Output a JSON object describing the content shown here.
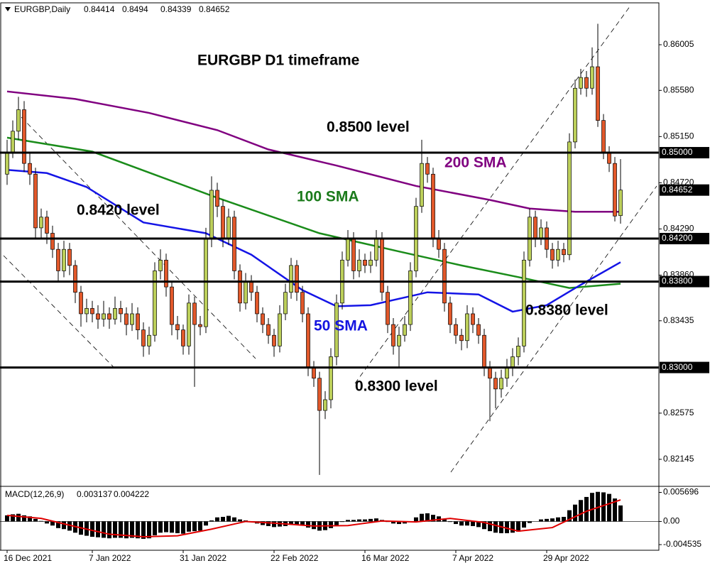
{
  "chart_data": {
    "type": "candlestick",
    "symbol": "EURGBP,Daily",
    "macd_label": "MACD(12,26,9)",
    "annotations": [
      {
        "text": "EURGBP D1 timeframe",
        "color": "#000000"
      },
      {
        "text": "0.8500 level",
        "color": "#000000"
      },
      {
        "text": "200 SMA",
        "color": "#800080"
      },
      {
        "text": "100 SMA",
        "color": "#1a7a1a"
      },
      {
        "text": "0.8420 level",
        "color": "#000000"
      },
      {
        "text": "50 SMA",
        "color": "#1414e0"
      },
      {
        "text": "0.8380 level",
        "color": "#000000"
      },
      {
        "text": "0.8300 level",
        "color": "#000000"
      }
    ],
    "bull_color": "#bccf5a",
    "bear_color": "#e2582a",
    "categories": [
      "16 Dec 2021",
      null,
      null,
      null,
      null,
      null,
      null,
      null,
      null,
      null,
      null,
      null,
      null,
      null,
      null,
      "7 Jan 2022",
      null,
      null,
      null,
      null,
      null,
      null,
      null,
      null,
      null,
      null,
      null,
      null,
      null,
      null,
      null,
      "31 Jan 2022",
      null,
      null,
      null,
      null,
      null,
      null,
      null,
      null,
      null,
      null,
      null,
      null,
      null,
      null,
      null,
      "22 Feb 2022",
      null,
      null,
      null,
      null,
      null,
      null,
      null,
      null,
      null,
      null,
      null,
      null,
      null,
      null,
      null,
      "16 Mar 2022",
      null,
      null,
      null,
      null,
      null,
      null,
      null,
      null,
      null,
      null,
      null,
      null,
      null,
      null,
      null,
      "7 Apr 2022",
      null,
      null,
      null,
      null,
      null,
      null,
      null,
      null,
      null,
      null,
      null,
      null,
      null,
      null,
      null,
      "29 Apr 2022",
      null,
      null,
      null,
      null,
      null,
      null,
      null,
      null,
      null,
      null,
      null,
      null,
      null
    ],
    "candles": [
      [
        0.848,
        0.8512,
        0.847,
        0.85
      ],
      [
        0.85,
        0.853,
        0.8495,
        0.852
      ],
      [
        0.852,
        0.8552,
        0.8512,
        0.854
      ],
      [
        0.854,
        0.8548,
        0.8482,
        0.849
      ],
      [
        0.849,
        0.85,
        0.847,
        0.848
      ],
      [
        0.848,
        0.8486,
        0.842,
        0.843
      ],
      [
        0.843,
        0.8448,
        0.842,
        0.844
      ],
      [
        0.844,
        0.8446,
        0.8415,
        0.8425
      ],
      [
        0.8425,
        0.8432,
        0.8402,
        0.841
      ],
      [
        0.841,
        0.8416,
        0.838,
        0.839
      ],
      [
        0.839,
        0.8418,
        0.8384,
        0.841
      ],
      [
        0.841,
        0.8416,
        0.8386,
        0.8395
      ],
      [
        0.8395,
        0.84,
        0.836,
        0.837
      ],
      [
        0.837,
        0.8376,
        0.8338,
        0.835
      ],
      [
        0.835,
        0.8364,
        0.8342,
        0.8355
      ],
      [
        0.8355,
        0.8362,
        0.8342,
        0.835
      ],
      [
        0.835,
        0.8358,
        0.8336,
        0.8345
      ],
      [
        0.8345,
        0.8362,
        0.8338,
        0.835
      ],
      [
        0.835,
        0.8356,
        0.8336,
        0.8345
      ],
      [
        0.8345,
        0.8366,
        0.834,
        0.8355
      ],
      [
        0.8355,
        0.8362,
        0.8342,
        0.835
      ],
      [
        0.835,
        0.8356,
        0.833,
        0.834
      ],
      [
        0.834,
        0.836,
        0.8334,
        0.835
      ],
      [
        0.835,
        0.8356,
        0.8326,
        0.8335
      ],
      [
        0.8335,
        0.8342,
        0.831,
        0.832
      ],
      [
        0.832,
        0.8338,
        0.8312,
        0.833
      ],
      [
        0.833,
        0.8398,
        0.8324,
        0.839
      ],
      [
        0.839,
        0.841,
        0.8382,
        0.84
      ],
      [
        0.84,
        0.8406,
        0.8366,
        0.8375
      ],
      [
        0.8375,
        0.838,
        0.833,
        0.834
      ],
      [
        0.834,
        0.8348,
        0.8326,
        0.8335
      ],
      [
        0.8335,
        0.834,
        0.8312,
        0.832
      ],
      [
        0.832,
        0.8368,
        0.8312,
        0.836
      ],
      [
        0.836,
        0.8366,
        0.8282,
        0.834
      ],
      [
        0.834,
        0.8348,
        0.833,
        0.8338
      ],
      [
        0.8338,
        0.843,
        0.8332,
        0.842
      ],
      [
        0.842,
        0.8478,
        0.8412,
        0.8465
      ],
      [
        0.8465,
        0.8472,
        0.844,
        0.845
      ],
      [
        0.845,
        0.8456,
        0.8412,
        0.842
      ],
      [
        0.842,
        0.8448,
        0.8414,
        0.844
      ],
      [
        0.844,
        0.8446,
        0.8382,
        0.839
      ],
      [
        0.839,
        0.8396,
        0.8352,
        0.836
      ],
      [
        0.836,
        0.8388,
        0.8354,
        0.838
      ],
      [
        0.838,
        0.8386,
        0.8362,
        0.837
      ],
      [
        0.837,
        0.8376,
        0.8342,
        0.835
      ],
      [
        0.835,
        0.8356,
        0.8332,
        0.834
      ],
      [
        0.834,
        0.8346,
        0.8322,
        0.833
      ],
      [
        0.833,
        0.8336,
        0.831,
        0.832
      ],
      [
        0.832,
        0.8358,
        0.8314,
        0.835
      ],
      [
        0.835,
        0.8378,
        0.8344,
        0.837
      ],
      [
        0.837,
        0.8402,
        0.8364,
        0.8395
      ],
      [
        0.8395,
        0.84,
        0.8362,
        0.837
      ],
      [
        0.837,
        0.8376,
        0.8342,
        0.835
      ],
      [
        0.835,
        0.8356,
        0.8292,
        0.83
      ],
      [
        0.83,
        0.8306,
        0.8282,
        0.829
      ],
      [
        0.829,
        0.8296,
        0.82,
        0.826
      ],
      [
        0.826,
        0.8278,
        0.8252,
        0.827
      ],
      [
        0.827,
        0.8318,
        0.8262,
        0.831
      ],
      [
        0.831,
        0.8368,
        0.8302,
        0.836
      ],
      [
        0.836,
        0.8408,
        0.8354,
        0.84
      ],
      [
        0.84,
        0.8428,
        0.8394,
        0.842
      ],
      [
        0.842,
        0.8426,
        0.8382,
        0.839
      ],
      [
        0.839,
        0.841,
        0.8384,
        0.84
      ],
      [
        0.84,
        0.8406,
        0.8388,
        0.8395
      ],
      [
        0.8395,
        0.8408,
        0.8388,
        0.84
      ],
      [
        0.84,
        0.8428,
        0.8394,
        0.842
      ],
      [
        0.842,
        0.8426,
        0.8362,
        0.837
      ],
      [
        0.837,
        0.8376,
        0.8332,
        0.834
      ],
      [
        0.834,
        0.8346,
        0.8312,
        0.832
      ],
      [
        0.832,
        0.8338,
        0.83,
        0.833
      ],
      [
        0.833,
        0.8348,
        0.8324,
        0.834
      ],
      [
        0.834,
        0.8398,
        0.8334,
        0.839
      ],
      [
        0.839,
        0.8458,
        0.8384,
        0.845
      ],
      [
        0.845,
        0.8512,
        0.8444,
        0.849
      ],
      [
        0.849,
        0.8496,
        0.8472,
        0.848
      ],
      [
        0.848,
        0.8486,
        0.8412,
        0.842
      ],
      [
        0.842,
        0.8428,
        0.8402,
        0.841
      ],
      [
        0.841,
        0.8416,
        0.8352,
        0.836
      ],
      [
        0.836,
        0.8366,
        0.8332,
        0.834
      ],
      [
        0.834,
        0.8346,
        0.8322,
        0.833
      ],
      [
        0.833,
        0.8336,
        0.8316,
        0.8325
      ],
      [
        0.8325,
        0.8358,
        0.8318,
        0.835
      ],
      [
        0.835,
        0.8356,
        0.8332,
        0.834
      ],
      [
        0.834,
        0.8346,
        0.8322,
        0.833
      ],
      [
        0.833,
        0.8336,
        0.8292,
        0.83
      ],
      [
        0.83,
        0.8306,
        0.825,
        0.829
      ],
      [
        0.829,
        0.8296,
        0.8262,
        0.828
      ],
      [
        0.828,
        0.8298,
        0.8272,
        0.829
      ],
      [
        0.829,
        0.8308,
        0.8282,
        0.83
      ],
      [
        0.83,
        0.8318,
        0.8292,
        0.831
      ],
      [
        0.831,
        0.8328,
        0.8302,
        0.832
      ],
      [
        0.832,
        0.8408,
        0.8314,
        0.84
      ],
      [
        0.84,
        0.8448,
        0.8394,
        0.844
      ],
      [
        0.844,
        0.8446,
        0.8412,
        0.842
      ],
      [
        0.842,
        0.8438,
        0.8414,
        0.843
      ],
      [
        0.843,
        0.8436,
        0.8402,
        0.841
      ],
      [
        0.841,
        0.8416,
        0.8392,
        0.84
      ],
      [
        0.84,
        0.8418,
        0.8394,
        0.841
      ],
      [
        0.841,
        0.8416,
        0.8398,
        0.8405
      ],
      [
        0.8405,
        0.8518,
        0.84,
        0.851
      ],
      [
        0.851,
        0.8568,
        0.8504,
        0.856
      ],
      [
        0.856,
        0.8578,
        0.8554,
        0.857
      ],
      [
        0.857,
        0.8576,
        0.8552,
        0.856
      ],
      [
        0.856,
        0.8598,
        0.8554,
        0.858
      ],
      [
        0.858,
        0.862,
        0.8524,
        0.853
      ],
      [
        0.853,
        0.8536,
        0.8494,
        0.85
      ],
      [
        0.85,
        0.8506,
        0.8482,
        0.849
      ],
      [
        0.849,
        0.8496,
        0.8436,
        0.8441
      ],
      [
        0.84414,
        0.8494,
        0.84339,
        0.84652
      ]
    ],
    "series": [
      {
        "name": "200 SMA",
        "color": "#800080",
        "x": [
          0,
          12,
          25,
          37,
          46,
          58,
          72,
          85,
          92,
          100,
          108
        ],
        "values": [
          0.8557,
          0.855,
          0.8537,
          0.8521,
          0.8503,
          0.8488,
          0.8469,
          0.8456,
          0.8448,
          0.8445,
          0.8445
        ]
      },
      {
        "name": "100 SMA",
        "color": "#1a8c1a",
        "x": [
          0,
          15,
          37,
          55,
          69,
          80,
          92,
          99,
          108
        ],
        "values": [
          0.8514,
          0.8501,
          0.8458,
          0.8425,
          0.8408,
          0.8395,
          0.8382,
          0.8374,
          0.8378
        ]
      },
      {
        "name": "50 SMA",
        "color": "#1414e6",
        "x": [
          0,
          7,
          14,
          24,
          35,
          43,
          52,
          58,
          64,
          74,
          83,
          89,
          95,
          101,
          108
        ],
        "values": [
          0.8484,
          0.8481,
          0.8468,
          0.8435,
          0.8425,
          0.8405,
          0.8372,
          0.8357,
          0.8358,
          0.837,
          0.8368,
          0.8352,
          0.8358,
          0.8377,
          0.8398
        ]
      }
    ],
    "ylim": [
      0.819,
      0.86395
    ],
    "yticks": [
      {
        "value": 0.86005,
        "label": "0.86005"
      },
      {
        "value": 0.8558,
        "label": "0.85580"
      },
      {
        "value": 0.8515,
        "label": "0.85150"
      },
      {
        "value": 0.8472,
        "label": "0.84720"
      },
      {
        "value": 0.8429,
        "label": "0.84290"
      },
      {
        "value": 0.8386,
        "label": "0.83860"
      },
      {
        "value": 0.83435,
        "label": "0.83435"
      },
      {
        "value": 0.82575,
        "label": "0.82575"
      },
      {
        "value": 0.82145,
        "label": "0.82145"
      }
    ],
    "levels": [
      {
        "value": 0.85,
        "label": "0.85000"
      },
      {
        "value": 0.842,
        "label": "0.84200"
      },
      {
        "value": 0.838,
        "label": "0.83800"
      },
      {
        "value": 0.83,
        "label": "0.83000"
      }
    ],
    "current_price": 0.84652,
    "macd": {
      "hist_color": "#000000",
      "signal_color": "#e00000",
      "histogram": [
        0.0012,
        0.0014,
        0.0015,
        0.0012,
        0.001,
        0.0005,
        0.0001,
        -0.0004,
        -0.0008,
        -0.0013,
        -0.0015,
        -0.0018,
        -0.0022,
        -0.0026,
        -0.0028,
        -0.003,
        -0.0031,
        -0.0032,
        -0.0033,
        -0.0032,
        -0.0032,
        -0.0033,
        -0.0032,
        -0.0033,
        -0.0034,
        -0.0033,
        -0.0027,
        -0.0022,
        -0.0021,
        -0.0022,
        -0.0023,
        -0.0024,
        -0.002,
        -0.0019,
        -0.0018,
        -0.0008,
        0.0002,
        0.0008,
        0.0009,
        0.0011,
        0.0008,
        0.0004,
        0.0002,
        -0.0001,
        -0.0004,
        -0.0007,
        -0.0009,
        -0.0011,
        -0.001,
        -0.0009,
        -0.0006,
        -0.0006,
        -0.0008,
        -0.0012,
        -0.0015,
        -0.0018,
        -0.0017,
        -0.0013,
        -0.0007,
        -0.0001,
        0.0003,
        0.0003,
        0.0004,
        0.0004,
        0.0005,
        0.0006,
        0.0003,
        -0.0001,
        -0.0004,
        -0.0005,
        -0.0004,
        -0.0001,
        0.0008,
        0.0015,
        0.0016,
        0.0013,
        0.001,
        0.0004,
        -0.0001,
        -0.0005,
        -0.0008,
        -0.0008,
        -0.0009,
        -0.0011,
        -0.0015,
        -0.0019,
        -0.0022,
        -0.0023,
        -0.0023,
        -0.0022,
        -0.002,
        -0.0012,
        -0.0003,
        0.0,
        0.0004,
        0.0005,
        0.0006,
        0.0008,
        0.0009,
        0.0022,
        0.0033,
        0.0042,
        0.0048,
        0.0056,
        0.0058,
        0.0057,
        0.0054,
        0.0045,
        0.003137
      ],
      "signal_x": [
        0,
        6,
        12,
        18,
        24,
        30,
        36,
        42,
        48,
        54,
        60,
        66,
        72,
        78,
        84,
        90,
        96,
        102,
        108
      ],
      "signal": [
        0.0012,
        0.0006,
        -0.001,
        -0.0025,
        -0.003,
        -0.0028,
        -0.0015,
        0.0,
        -0.0004,
        -0.0009,
        -0.0008,
        0.0001,
        -0.0001,
        0.0006,
        -0.0002,
        -0.0019,
        -0.0012,
        0.002,
        0.004222
      ],
      "ylim": [
        -0.0055,
        0.0066
      ],
      "yticks": [
        0.005696,
        {
          "value": 0,
          "label": "0.00"
        },
        -0.004535
      ]
    }
  }
}
